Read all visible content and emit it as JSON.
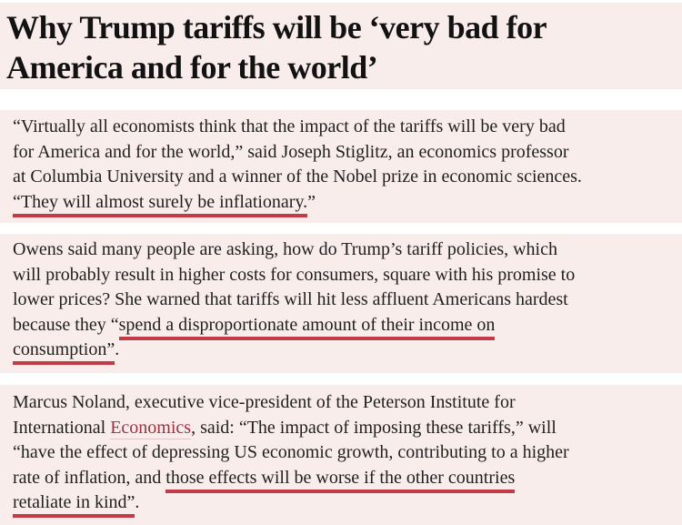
{
  "colors": {
    "block_background": "#f9edeb",
    "page_background": "#ffffff",
    "headline_text": "#121212",
    "body_text": "#1f1f1f",
    "annotation_underline": "#c23c48",
    "link_text": "#9e3040",
    "link_underline": "#e0c4c6"
  },
  "headline": {
    "line1": "Why Trump tariffs will be ‘very bad for",
    "line2": "America and for the world’"
  },
  "paragraphs": [
    {
      "lines": [
        [
          {
            "t": "“Virtually all economists think that the impact of the tariffs will be very bad",
            "s": "n"
          }
        ],
        [
          {
            "t": "for America and for the world,” said Joseph Stiglitz, an economics professor",
            "s": "n"
          }
        ],
        [
          {
            "t": "at Columbia University and a winner of the Nobel prize in economic sciences.",
            "s": "n"
          }
        ],
        [
          {
            "t": "“They will almost surely be inflationary.",
            "s": "u"
          },
          {
            "t": "”",
            "s": "n"
          }
        ]
      ]
    },
    {
      "lines": [
        [
          {
            "t": "Owens said many people are asking, how do Trump’s tariff policies, which",
            "s": "n"
          }
        ],
        [
          {
            "t": "will probably result in higher costs for consumers, square with his promise to",
            "s": "n"
          }
        ],
        [
          {
            "t": "lower prices? She warned that tariffs will hit less affluent Americans hardest",
            "s": "n"
          }
        ],
        [
          {
            "t": "because they “",
            "s": "n"
          },
          {
            "t": "spend a disproportionate amount of their income on",
            "s": "u"
          }
        ],
        [
          {
            "t": "consumption”",
            "s": "u"
          },
          {
            "t": ".",
            "s": "n"
          }
        ]
      ]
    },
    {
      "lines": [
        [
          {
            "t": "Marcus Noland, executive vice-president of the Peterson Institute for",
            "s": "n"
          }
        ],
        [
          {
            "t": "International ",
            "s": "n"
          },
          {
            "t": "Economics",
            "s": "l"
          },
          {
            "t": ", said: “The impact of imposing these tariffs,” will",
            "s": "n"
          }
        ],
        [
          {
            "t": "“have the effect of depressing US economic growth, contributing to a higher",
            "s": "n"
          }
        ],
        [
          {
            "t": "rate of inflation, and ",
            "s": "n"
          },
          {
            "t": "those effects will be worse if the other countries",
            "s": "u"
          }
        ],
        [
          {
            "t": "retaliate in kind”",
            "s": "u"
          },
          {
            "t": ".",
            "s": "n"
          }
        ]
      ]
    }
  ]
}
